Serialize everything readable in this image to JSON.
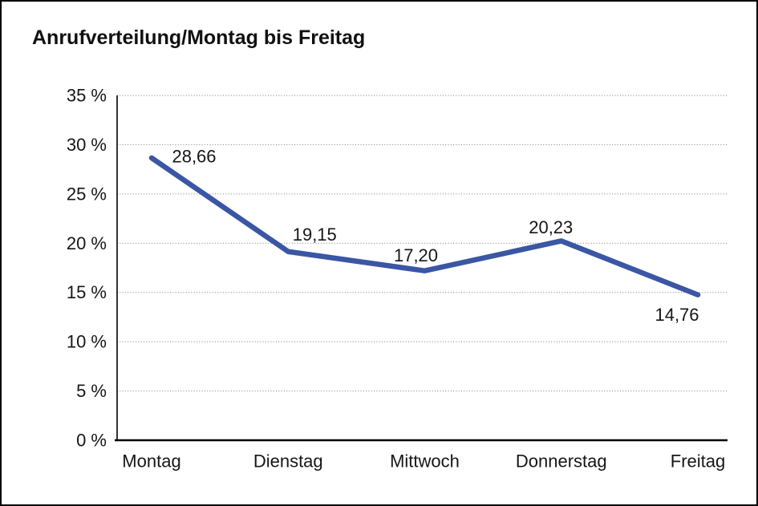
{
  "title": "Anrufverteilung/Montag bis Freitag",
  "chart_data": {
    "type": "line",
    "title": "Anrufverteilung/Montag bis Freitag",
    "categories": [
      "Montag",
      "Dienstag",
      "Mittwoch",
      "Donnerstag",
      "Freitag"
    ],
    "values": [
      28.66,
      19.15,
      17.2,
      20.23,
      14.76
    ],
    "value_labels": [
      "28,66",
      "19,15",
      "17,20",
      "20,23",
      "14,76"
    ],
    "xlabel": "",
    "ylabel": "",
    "ylim": [
      0,
      35
    ],
    "ytick_step": 5,
    "ytick_labels": [
      "0 %",
      "5 %",
      "10 %",
      "15 %",
      "20 %",
      "25 %",
      "30 %",
      "35 %"
    ],
    "grid": "horizontal-dotted",
    "legend": "none",
    "line_color": "#3A56A5",
    "text_color": "#161616",
    "grid_color": "#7a7a7a",
    "axis_color": "#000000",
    "background": "#ffffff",
    "frame_border_color": "#000000"
  }
}
